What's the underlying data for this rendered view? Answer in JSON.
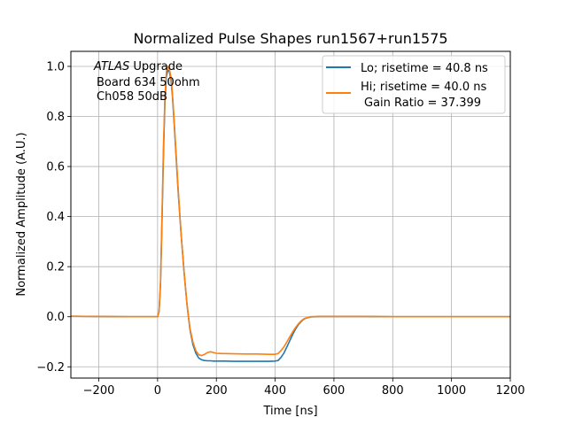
{
  "chart_data": {
    "type": "line",
    "title": "Normalized Pulse Shapes run1567+run1575",
    "xlabel": "Time [ns]",
    "ylabel": "Normalized Amplitude (A.U.)",
    "xlim": [
      -295,
      1200
    ],
    "ylim": [
      -0.245,
      1.06
    ],
    "xticks": [
      -200,
      0,
      200,
      400,
      600,
      800,
      1000,
      1200
    ],
    "xtick_labels": [
      "−200",
      "0",
      "200",
      "400",
      "600",
      "800",
      "1000",
      "1200"
    ],
    "yticks": [
      -0.2,
      0.0,
      0.2,
      0.4,
      0.6,
      0.8,
      1.0
    ],
    "ytick_labels": [
      "−0.2",
      "0.0",
      "0.2",
      "0.4",
      "0.6",
      "0.8",
      "1.0"
    ],
    "grid": true,
    "legend_position": "top-right",
    "annotation": {
      "atlas": "ATLAS",
      "line1_rest": " Upgrade",
      "line2": "Board 634 50ohm",
      "line3": "Ch058 50dB"
    },
    "series": [
      {
        "name": "Lo; risetime = 40.8 ns",
        "color": "#1f77b4",
        "x": [
          -295,
          -200,
          -100,
          -20,
          0,
          5,
          10,
          15,
          20,
          25,
          30,
          35,
          40,
          45,
          50,
          55,
          60,
          65,
          70,
          80,
          90,
          100,
          110,
          120,
          130,
          140,
          150,
          160,
          170,
          180,
          190,
          200,
          220,
          260,
          300,
          340,
          380,
          400,
          410,
          420,
          430,
          440,
          450,
          460,
          470,
          480,
          490,
          500,
          510,
          520,
          550,
          600,
          700,
          800,
          900,
          1000,
          1100,
          1200
        ],
        "y": [
          0.002,
          0.001,
          0.0,
          0.0,
          0.0,
          0.02,
          0.13,
          0.38,
          0.65,
          0.86,
          0.96,
          0.985,
          0.98,
          0.95,
          0.89,
          0.8,
          0.7,
          0.6,
          0.5,
          0.33,
          0.18,
          0.05,
          -0.05,
          -0.11,
          -0.145,
          -0.165,
          -0.172,
          -0.175,
          -0.176,
          -0.176,
          -0.177,
          -0.177,
          -0.177,
          -0.178,
          -0.178,
          -0.178,
          -0.178,
          -0.177,
          -0.175,
          -0.162,
          -0.145,
          -0.12,
          -0.095,
          -0.07,
          -0.048,
          -0.03,
          -0.017,
          -0.008,
          -0.004,
          -0.001,
          0.001,
          0.001,
          0.001,
          0.0,
          0.0,
          0.0,
          0.0,
          0.0
        ]
      },
      {
        "name": "Hi; risetime = 40.0 ns",
        "name_line2": "Gain Ratio = 37.399",
        "color": "#ff7f0e",
        "x": [
          -295,
          -200,
          -100,
          -20,
          0,
          5,
          10,
          15,
          20,
          25,
          30,
          35,
          40,
          45,
          50,
          55,
          60,
          65,
          70,
          80,
          90,
          100,
          110,
          120,
          130,
          140,
          150,
          160,
          170,
          180,
          190,
          200,
          220,
          260,
          300,
          340,
          380,
          400,
          410,
          420,
          430,
          440,
          450,
          460,
          470,
          480,
          490,
          500,
          510,
          520,
          550,
          600,
          700,
          800,
          900,
          1000,
          1100,
          1200
        ],
        "y": [
          0.002,
          0.001,
          0.0,
          0.0,
          0.0,
          0.02,
          0.14,
          0.4,
          0.68,
          0.88,
          0.98,
          1.0,
          0.99,
          0.96,
          0.9,
          0.81,
          0.71,
          0.61,
          0.51,
          0.33,
          0.18,
          0.05,
          -0.045,
          -0.1,
          -0.135,
          -0.152,
          -0.155,
          -0.15,
          -0.143,
          -0.14,
          -0.143,
          -0.146,
          -0.147,
          -0.148,
          -0.149,
          -0.149,
          -0.15,
          -0.15,
          -0.147,
          -0.135,
          -0.12,
          -0.1,
          -0.08,
          -0.06,
          -0.042,
          -0.027,
          -0.015,
          -0.007,
          -0.003,
          0.0,
          0.001,
          0.001,
          0.001,
          0.0,
          0.0,
          0.0,
          0.0,
          0.0
        ]
      }
    ]
  }
}
